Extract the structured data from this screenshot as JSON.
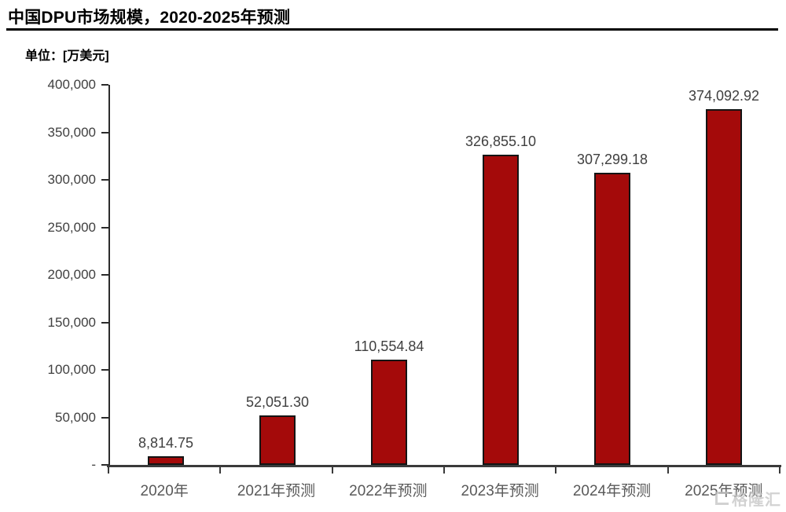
{
  "header": {
    "title": "中国DPU市场规模，2020-2025年预测",
    "unit_label": "单位：[万美元]"
  },
  "chart_data": {
    "type": "bar",
    "title": "中国DPU市场规模，2020-2025年预测",
    "unit": "万美元",
    "categories": [
      "2020年",
      "2021年预测",
      "2022年预测",
      "2023年预测",
      "2024年预测",
      "2025年预测"
    ],
    "values": [
      8814.75,
      52051.3,
      110554.84,
      326855.1,
      307299.18,
      374092.92
    ],
    "value_labels": [
      "8,814.75",
      "52,051.30",
      "110,554.84",
      "326,855.10",
      "307,299.18",
      "374,092.92"
    ],
    "ylim": [
      0,
      400000
    ],
    "ytick_step": 50000,
    "ytick_labels": [
      "400,000",
      "350,000",
      "300,000",
      "250,000",
      "200,000",
      "150,000",
      "100,000",
      "50,000",
      "-"
    ],
    "grid": false,
    "legend_position": "none",
    "bar_color": "#A40A0A",
    "bar_border_color": "#141414",
    "axis_color": "#2b2b2b",
    "value_label_color": "#3f3f3f",
    "tick_label_color": "#595959"
  },
  "watermark": {
    "text": "格隆汇"
  }
}
